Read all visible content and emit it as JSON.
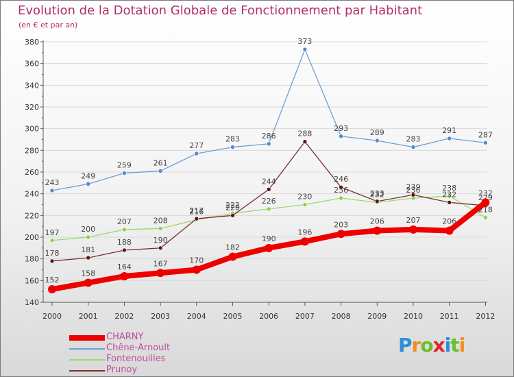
{
  "header": {
    "title": "Evolution de la Dotation Globale de Fonctionnement par Habitant",
    "subtitle": "(en € et par an)"
  },
  "logo": {
    "text": "Proxiti",
    "letters": [
      "P",
      "r",
      "o",
      "x",
      "i",
      "t",
      "i"
    ],
    "colors": [
      "#2e8fd6",
      "#f28c1e",
      "#6cbf2a",
      "#e0242b",
      "#2e8fd6",
      "#6cbf2a",
      "#f28c1e"
    ]
  },
  "chart_data": {
    "type": "line",
    "title": "Evolution de la Dotation Globale de Fonctionnement par Habitant",
    "subtitle": "(en € et par an)",
    "xlabel": "",
    "ylabel": "",
    "ylim": [
      140,
      380
    ],
    "yticks": [
      140,
      160,
      180,
      200,
      220,
      240,
      260,
      280,
      300,
      320,
      340,
      360,
      380
    ],
    "categories": [
      "2000",
      "2001",
      "2002",
      "2003",
      "2004",
      "2005",
      "2006",
      "2007",
      "2008",
      "2009",
      "2010",
      "2011",
      "2012"
    ],
    "grid": "horizontal",
    "legend_position": "bottom-left",
    "series": [
      {
        "name": "Chêne-Arnoult",
        "color": "#6a9fd4",
        "marker": "#4f8ccc",
        "values": [
          243,
          249,
          259,
          261,
          277,
          283,
          286,
          373,
          293,
          289,
          283,
          291,
          287
        ]
      },
      {
        "name": "Fontenouilles",
        "color": "#9ad96b",
        "marker": "#86d24f",
        "values": [
          197,
          200,
          207,
          208,
          216,
          222,
          226,
          230,
          236,
          232,
          236,
          238,
          218
        ]
      },
      {
        "name": "Prunoy",
        "color": "#7a2e2e",
        "marker": "#5e1616",
        "values": [
          178,
          181,
          188,
          190,
          217,
          220,
          244,
          288,
          246,
          233,
          239,
          232,
          229
        ]
      },
      {
        "name": "CHARNY",
        "color": "#ee0000",
        "marker": "#ee0000",
        "values": [
          152,
          158,
          164,
          167,
          170,
          182,
          190,
          196,
          203,
          206,
          207,
          206,
          232
        ]
      }
    ],
    "legend_order": [
      "CHARNY",
      "Chêne-Arnoult",
      "Fontenouilles",
      "Prunoy"
    ]
  }
}
